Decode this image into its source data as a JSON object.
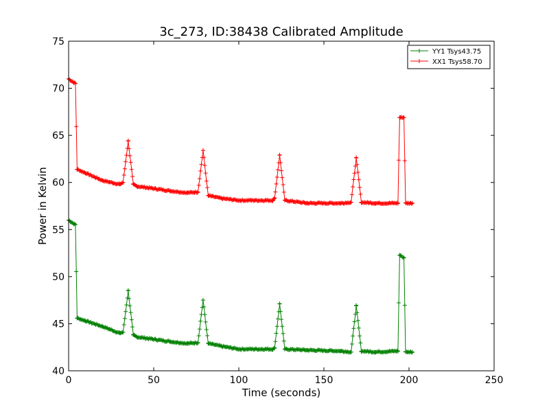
{
  "chart_data": {
    "type": "line",
    "title": "3c_273, ID:38438 Calibrated Amplitude",
    "xlabel": "Time (seconds)",
    "ylabel": "Power in Kelvin",
    "xlim": [
      0,
      250
    ],
    "ylim": [
      40,
      75
    ],
    "xticks": [
      0,
      50,
      100,
      150,
      200,
      250
    ],
    "yticks": [
      40,
      45,
      50,
      55,
      60,
      65,
      70,
      75
    ],
    "grid": false,
    "legend_position": "top-right",
    "marker": "+",
    "series": [
      {
        "name": "YY1 Tsys43.75",
        "color": "#008000",
        "base_points": [
          [
            0,
            56.0
          ],
          [
            4,
            55.5
          ],
          [
            5,
            45.6
          ],
          [
            10,
            45.3
          ],
          [
            20,
            44.7
          ],
          [
            30,
            44.0
          ],
          [
            32,
            44.1
          ],
          [
            35,
            48.5
          ],
          [
            38,
            43.8
          ],
          [
            40,
            43.6
          ],
          [
            60,
            43.1
          ],
          [
            70,
            42.9
          ],
          [
            76,
            43.0
          ],
          [
            79,
            47.5
          ],
          [
            82,
            42.9
          ],
          [
            90,
            42.6
          ],
          [
            100,
            42.3
          ],
          [
            120,
            42.3
          ],
          [
            121,
            42.4
          ],
          [
            124,
            47.1
          ],
          [
            127,
            42.3
          ],
          [
            140,
            42.2
          ],
          [
            160,
            42.1
          ],
          [
            166,
            42.0
          ],
          [
            169,
            46.9
          ],
          [
            172,
            42.1
          ],
          [
            180,
            42.0
          ],
          [
            193.5,
            42.1
          ],
          [
            194.5,
            52.3
          ],
          [
            197,
            52.0
          ],
          [
            198,
            42.0
          ],
          [
            202,
            42.0
          ]
        ],
        "peaks": [
          35,
          79,
          124,
          169
        ]
      },
      {
        "name": "XX1 Tsys58.70",
        "color": "#ff0000",
        "base_points": [
          [
            0,
            71.0
          ],
          [
            4,
            70.5
          ],
          [
            5,
            61.4
          ],
          [
            10,
            61.0
          ],
          [
            20,
            60.2
          ],
          [
            30,
            59.8
          ],
          [
            32,
            60.0
          ],
          [
            35,
            64.4
          ],
          [
            38,
            59.8
          ],
          [
            40,
            59.6
          ],
          [
            60,
            59.1
          ],
          [
            70,
            58.9
          ],
          [
            76,
            59.0
          ],
          [
            79,
            63.4
          ],
          [
            82,
            58.6
          ],
          [
            90,
            58.3
          ],
          [
            100,
            58.1
          ],
          [
            120,
            58.1
          ],
          [
            121,
            58.3
          ],
          [
            124,
            62.9
          ],
          [
            127,
            58.1
          ],
          [
            140,
            57.8
          ],
          [
            160,
            57.8
          ],
          [
            166,
            57.9
          ],
          [
            169,
            62.6
          ],
          [
            172,
            57.9
          ],
          [
            180,
            57.8
          ],
          [
            193.5,
            57.8
          ],
          [
            194.5,
            66.9
          ],
          [
            197,
            66.9
          ],
          [
            198,
            57.8
          ],
          [
            202,
            57.8
          ]
        ],
        "peaks": [
          35,
          79,
          124,
          169
        ]
      }
    ]
  }
}
